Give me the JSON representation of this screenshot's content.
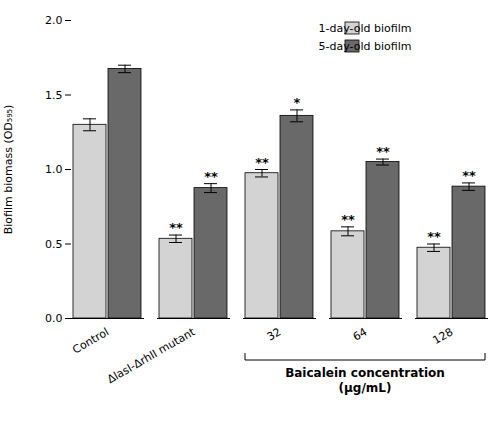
{
  "chart_data": {
    "type": "bar",
    "categories": [
      "Control",
      "ΔlasI-ΔrhII mutant",
      "32",
      "64",
      "128"
    ],
    "series": [
      {
        "name": "1-day-old biofilm",
        "color": "#d3d3d3",
        "values": [
          1.3,
          0.535,
          0.975,
          0.585,
          0.475
        ],
        "errors": [
          0.04,
          0.025,
          0.025,
          0.03,
          0.025
        ],
        "annotations": [
          null,
          "**",
          "**",
          "**",
          "**"
        ]
      },
      {
        "name": "5-day-old biofilm",
        "color": "#696969",
        "values": [
          1.675,
          0.875,
          1.36,
          1.05,
          0.885
        ],
        "errors": [
          0.025,
          0.03,
          0.04,
          0.02,
          0.025
        ],
        "annotations": [
          null,
          "**",
          "*",
          "**",
          "**"
        ]
      }
    ],
    "ylabel": "Biofilm biomass (OD₅₉₅)",
    "xlabel": "Baicalein concentration\n(µg/mL)",
    "bracket": [
      "32",
      "128"
    ],
    "ylim": [
      0,
      2.0
    ],
    "yticks": [
      {
        "value": 0,
        "label": "0.0"
      },
      {
        "value": 0.5,
        "label": "0.5"
      },
      {
        "value": 1.0,
        "label": "1.0"
      },
      {
        "value": 1.5,
        "label": "1.5"
      },
      {
        "value": 2.0,
        "label": "2.0"
      }
    ],
    "grid": false,
    "legend": "upper right"
  }
}
